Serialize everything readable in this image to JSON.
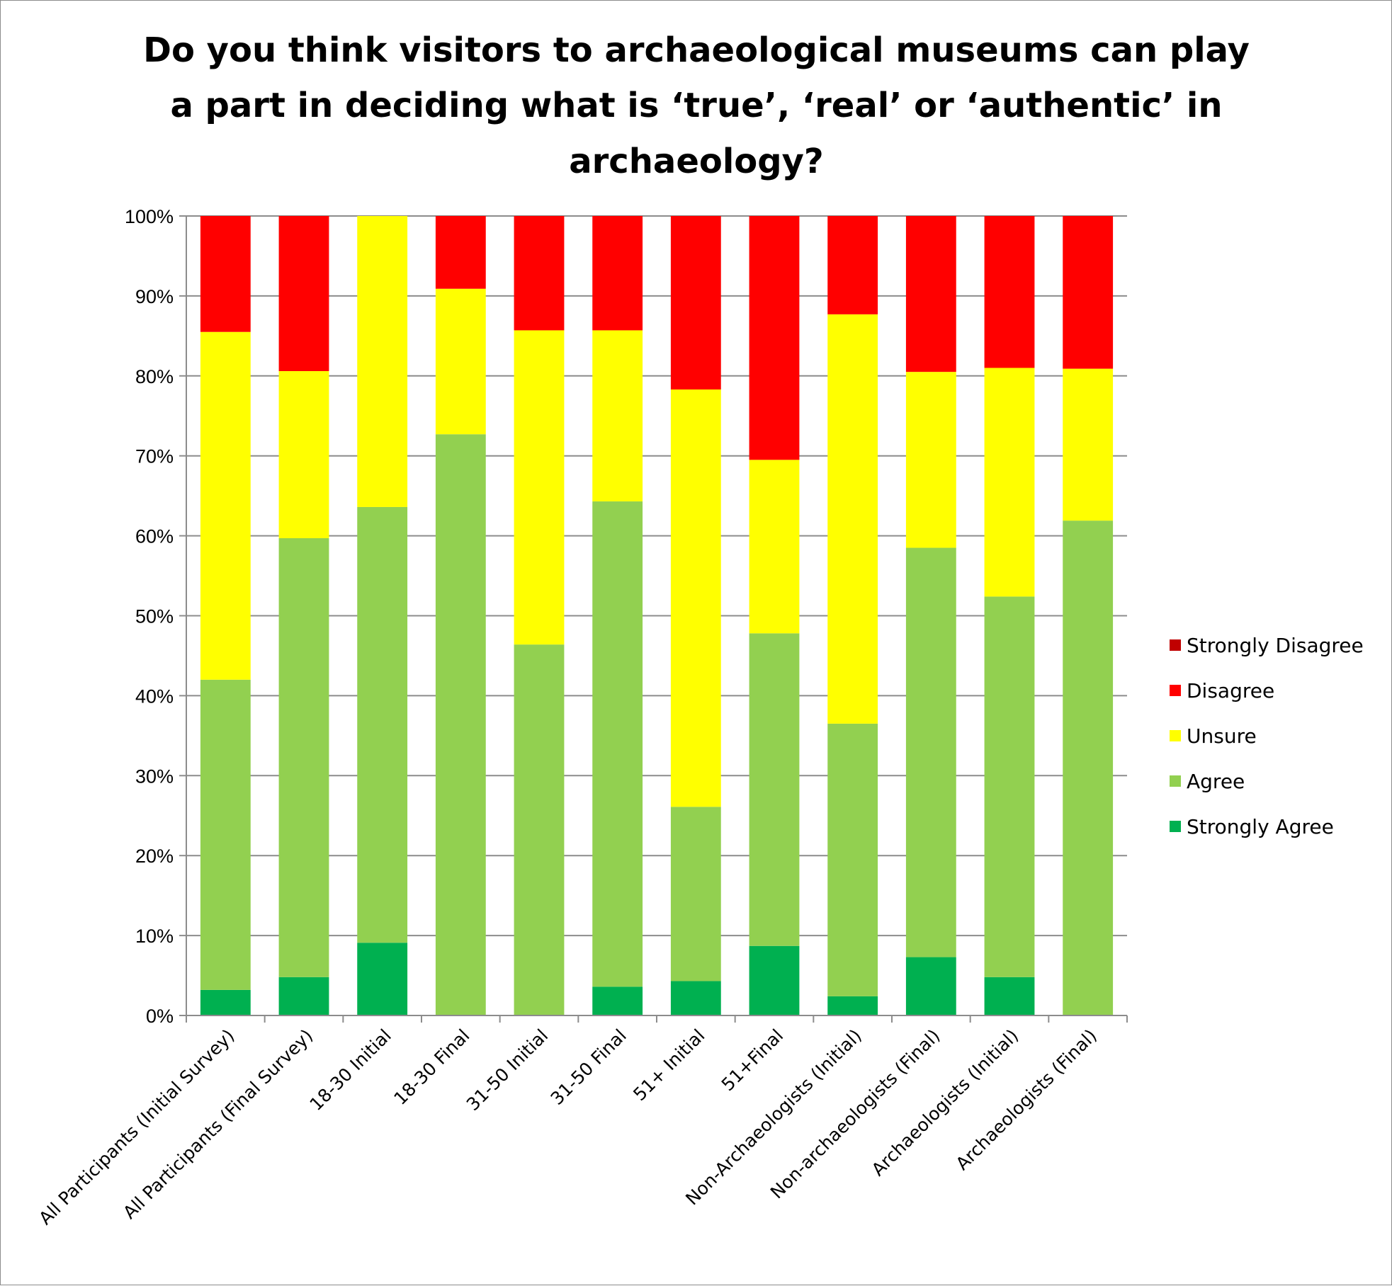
{
  "chart_data": {
    "type": "bar",
    "stacked": true,
    "percent_stacked": true,
    "title": "Do you think visitors to archaeological museums can play a part in deciding what is ‘true’, ‘real’ or ‘authentic’ in archaeology?",
    "title_lines": [
      "Do you think visitors to archaeological museums can play",
      "a part in deciding what is ‘true’, ‘real’ or ‘authentic’ in",
      "archaeology?"
    ],
    "xlabel": "",
    "ylabel": "",
    "ylim": [
      0,
      100
    ],
    "y_ticks": [
      "0%",
      "10%",
      "20%",
      "30%",
      "40%",
      "50%",
      "60%",
      "70%",
      "80%",
      "90%",
      "100%"
    ],
    "grid": true,
    "legend_position": "right",
    "categories": [
      "All Participants (Initial Survey)",
      "All Participants (Final Survey)",
      "18-30 Initial",
      "18-30 Final",
      "31-50 Initial",
      "31-50 Final",
      "51+ Initial",
      "51+Final",
      "Non-Archaeologists (Initial)",
      "Non-archaeologists (Final)",
      "Archaeologists (Initial)",
      "Archaeologists (Final)"
    ],
    "series": [
      {
        "name": "Strongly Agree",
        "color": "#00b050",
        "values": [
          3.2,
          4.8,
          9.1,
          0,
          0,
          3.6,
          4.3,
          8.7,
          2.4,
          7.3,
          4.8,
          0
        ]
      },
      {
        "name": "Agree",
        "color": "#92d050",
        "values": [
          38.8,
          54.9,
          54.5,
          72.7,
          46.4,
          60.7,
          21.8,
          39.1,
          34.1,
          51.2,
          47.6,
          61.9
        ]
      },
      {
        "name": "Unsure",
        "color": "#ffff00",
        "values": [
          43.5,
          20.9,
          36.4,
          18.2,
          39.3,
          21.4,
          52.2,
          21.7,
          51.2,
          22.0,
          28.6,
          19.0
        ]
      },
      {
        "name": "Disagree",
        "color": "#ff0000",
        "values": [
          14.5,
          19.4,
          0,
          9.1,
          14.3,
          14.3,
          21.7,
          30.5,
          12.3,
          19.5,
          19.0,
          19.1
        ]
      },
      {
        "name": "Strongly Disagree",
        "color": "#c00000",
        "values": [
          0,
          0,
          0,
          0,
          0,
          0,
          0,
          0,
          0,
          0,
          0,
          0
        ]
      }
    ],
    "legend_order": [
      "Strongly Disagree",
      "Disagree",
      "Unsure",
      "Agree",
      "Strongly Agree"
    ]
  }
}
